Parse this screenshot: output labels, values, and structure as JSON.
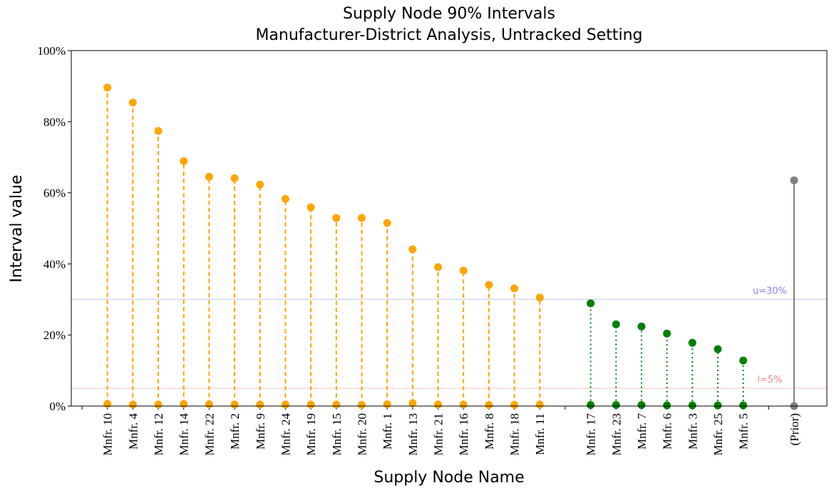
{
  "chart_data": {
    "type": "interval",
    "title": "Supply Node 90% Intervals",
    "subtitle": "Manufacturer-District Analysis, Untracked Setting",
    "x_label": "Supply Node Name",
    "y_label": "Interval value",
    "categories": [
      null,
      "Mnfr. 10",
      "Mnfr. 4",
      "Mnfr. 12",
      "Mnfr. 14",
      "Mnfr. 22",
      "Mnfr. 2",
      "Mnfr. 9",
      "Mnfr. 24",
      "Mnfr. 19",
      "Mnfr. 15",
      "Mnfr. 20",
      "Mnfr. 1",
      "Mnfr. 13",
      "Mnfr. 21",
      "Mnfr. 16",
      "Mnfr. 8",
      "Mnfr. 18",
      "Mnfr. 11",
      null,
      "Mnfr. 17",
      "Mnfr. 23",
      "Mnfr. 7",
      "Mnfr. 6",
      "Mnfr. 3",
      "Mnfr. 25",
      "Mnfr. 5",
      null,
      "(Prior)"
    ],
    "series": [
      {
        "color": "#ffa500",
        "dash": "6,4",
        "values": [
          null,
          89.6,
          85.4,
          77.4,
          68.9,
          64.5,
          64.1,
          62.3,
          58.3,
          55.9,
          52.9,
          52.9,
          51.5,
          44.1,
          39.1,
          38.1,
          34.1,
          33.1,
          30.5,
          null,
          null,
          null,
          null,
          null,
          null,
          null,
          null,
          null,
          null
        ],
        "lower": [
          null,
          0.6,
          0.4,
          0.4,
          0.6,
          0.5,
          0.4,
          0.4,
          0.4,
          0.4,
          0.4,
          0.3,
          0.5,
          0.8,
          0.4,
          0.4,
          0.3,
          0.3,
          0.4,
          null,
          null,
          null,
          null,
          null,
          null,
          null,
          null,
          null,
          null
        ]
      },
      {
        "color": "#008000",
        "dash": "2,4",
        "values": [
          null,
          null,
          null,
          null,
          null,
          null,
          null,
          null,
          null,
          null,
          null,
          null,
          null,
          null,
          null,
          null,
          null,
          null,
          null,
          null,
          28.9,
          23.0,
          22.4,
          20.4,
          17.8,
          16.0,
          12.8,
          null,
          null
        ],
        "lower": [
          null,
          null,
          null,
          null,
          null,
          null,
          null,
          null,
          null,
          null,
          null,
          null,
          null,
          null,
          null,
          null,
          null,
          null,
          null,
          null,
          0.3,
          0.3,
          0.3,
          0.2,
          0.2,
          0.2,
          0.2,
          null,
          null
        ]
      },
      {
        "color": "#808080",
        "dash": "none",
        "values": [
          null,
          null,
          null,
          null,
          null,
          null,
          null,
          null,
          null,
          null,
          null,
          null,
          null,
          null,
          null,
          null,
          null,
          null,
          null,
          null,
          null,
          null,
          null,
          null,
          null,
          null,
          null,
          null,
          63.5
        ],
        "lower": [
          null,
          null,
          null,
          null,
          null,
          null,
          null,
          null,
          null,
          null,
          null,
          null,
          null,
          null,
          null,
          null,
          null,
          null,
          null,
          null,
          null,
          null,
          null,
          null,
          null,
          null,
          null,
          null,
          0
        ]
      }
    ],
    "reference_lines": [
      {
        "value": 30,
        "label": "u=30%",
        "color": "#8888ee"
      },
      {
        "value": 5,
        "label": "l=5%",
        "color": "#ee8888"
      }
    ],
    "ylim": [
      0,
      100
    ],
    "yticks": [
      {
        "value": 0,
        "label": "0%"
      },
      {
        "value": 20,
        "label": "20%"
      },
      {
        "value": 40,
        "label": "40%"
      },
      {
        "value": 60,
        "label": "60%"
      },
      {
        "value": 80,
        "label": "80%"
      },
      {
        "value": 100,
        "label": "100%"
      }
    ]
  }
}
